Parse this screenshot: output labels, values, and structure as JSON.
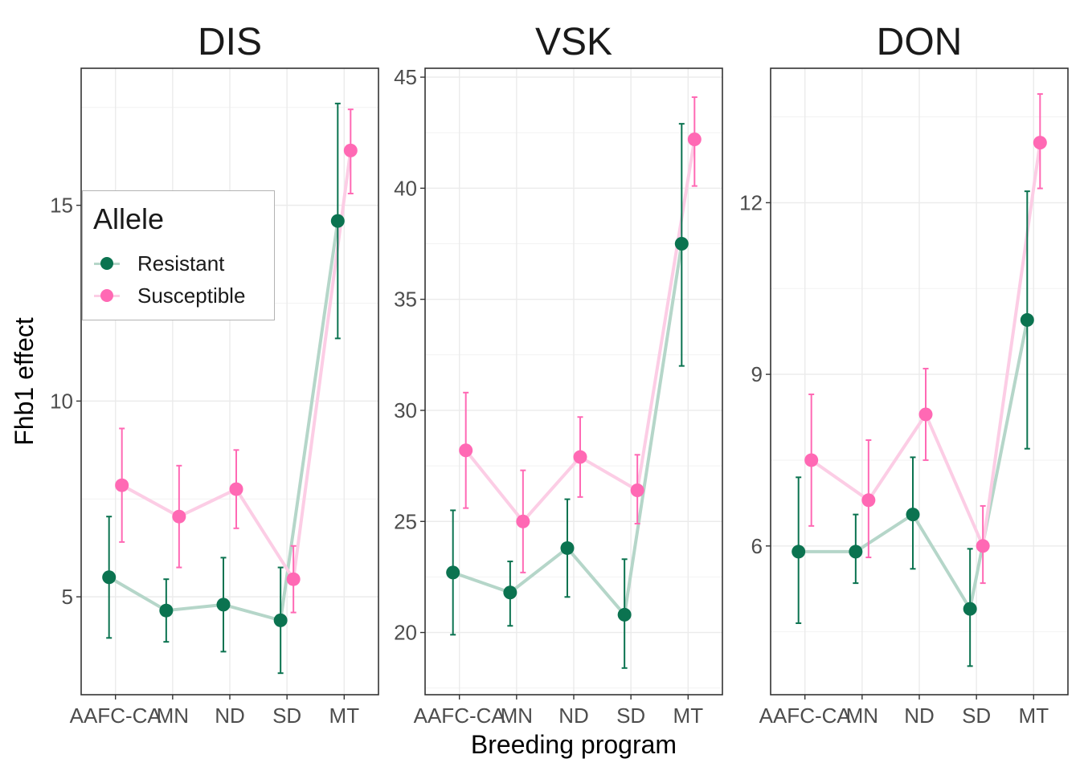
{
  "chart_data": {
    "type": "line",
    "x_label": "Breeding program",
    "y_label": "Fhb1 effect",
    "categories": [
      "AAFC-CA",
      "MN",
      "ND",
      "SD",
      "MT"
    ],
    "legend": {
      "title": "Allele",
      "placement": "inside-left",
      "items": [
        {
          "name": "Resistant",
          "color": "#0b7350"
        },
        {
          "name": "Susceptible",
          "color": "#ff69b4"
        }
      ]
    },
    "panels": [
      {
        "title": "DIS",
        "ylim": [
          2.5,
          18.5
        ],
        "yticks": [
          5,
          10,
          15
        ],
        "grid": true,
        "series": [
          {
            "name": "Resistant",
            "color": "#0b7350",
            "values": [
              5.5,
              4.65,
              4.8,
              4.4,
              14.6
            ],
            "lower": [
              3.95,
              3.85,
              3.6,
              3.05,
              11.6
            ],
            "upper": [
              7.05,
              5.45,
              6.0,
              5.75,
              17.6
            ]
          },
          {
            "name": "Susceptible",
            "color": "#ff69b4",
            "values": [
              7.85,
              7.05,
              7.75,
              5.45,
              16.4
            ],
            "lower": [
              6.4,
              5.75,
              6.75,
              4.6,
              15.3
            ],
            "upper": [
              9.3,
              8.35,
              8.75,
              6.3,
              17.45
            ]
          }
        ]
      },
      {
        "title": "VSK",
        "ylim": [
          17.2,
          45.4
        ],
        "yticks": [
          20,
          25,
          30,
          35,
          40,
          45
        ],
        "grid": true,
        "series": [
          {
            "name": "Resistant",
            "color": "#0b7350",
            "values": [
              22.7,
              21.8,
              23.8,
              20.8,
              37.5
            ],
            "lower": [
              19.9,
              20.3,
              21.6,
              18.4,
              32.0
            ],
            "upper": [
              25.5,
              23.2,
              26.0,
              23.3,
              42.9
            ]
          },
          {
            "name": "Susceptible",
            "color": "#ff69b4",
            "values": [
              28.2,
              25.0,
              27.9,
              26.4,
              42.2
            ],
            "lower": [
              25.6,
              22.7,
              26.1,
              24.9,
              40.1
            ],
            "upper": [
              30.8,
              27.3,
              29.7,
              28.0,
              44.1
            ]
          }
        ]
      },
      {
        "title": "DON",
        "ylim": [
          3.4,
          14.35
        ],
        "yticks": [
          6,
          9,
          12
        ],
        "grid": true,
        "series": [
          {
            "name": "Resistant",
            "color": "#0b7350",
            "values": [
              5.9,
              5.9,
              6.55,
              4.9,
              9.95
            ],
            "lower": [
              4.65,
              5.35,
              5.6,
              3.9,
              7.7
            ],
            "upper": [
              7.2,
              6.55,
              7.55,
              5.95,
              12.2
            ]
          },
          {
            "name": "Susceptible",
            "color": "#ff69b4",
            "values": [
              7.5,
              6.8,
              8.3,
              6.0,
              13.05
            ],
            "lower": [
              6.35,
              5.8,
              7.5,
              5.35,
              12.25
            ],
            "upper": [
              8.65,
              7.85,
              9.1,
              6.7,
              13.9
            ]
          }
        ]
      }
    ]
  }
}
